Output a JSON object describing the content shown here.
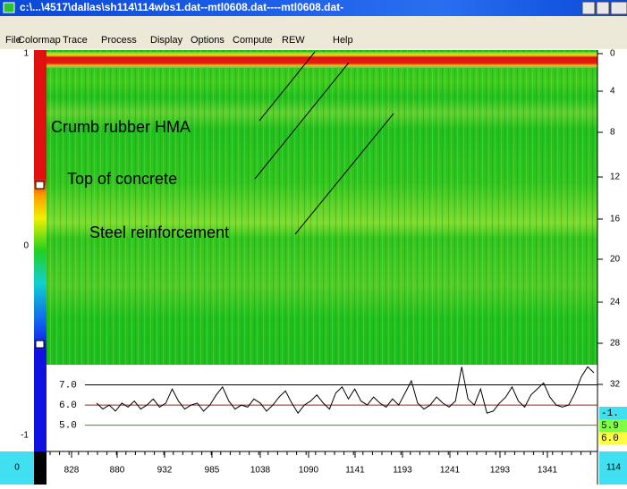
{
  "window": {
    "title": "c:\\...\\4517\\dallas\\sh114\\114wbs1.dat--mtl0608.dat----mtl0608.dat-"
  },
  "menu": [
    "File",
    "Colormap",
    "Trace",
    "Process",
    "Display",
    "Options",
    "Compute",
    "REW",
    "Help"
  ],
  "annotations": [
    "Crumb rubber HMA",
    "Top of concrete",
    "Steel reinforcement"
  ],
  "color_scale": {
    "labels": [
      "1",
      "0",
      "-1"
    ]
  },
  "depth_axis": {
    "labels": [
      "0",
      "4",
      "8",
      "12",
      "16",
      "20",
      "24",
      "28",
      "32"
    ]
  },
  "side_readouts": [
    "-1.",
    "5.9",
    "6.0"
  ],
  "trace": {
    "ylim": [
      3.7,
      8.0
    ],
    "lines": [
      {
        "value": 7,
        "label": "7.0",
        "color": "#000000"
      },
      {
        "value": 6,
        "label": "6.0",
        "color": "#a02020"
      },
      {
        "value": 5,
        "label": "5.0",
        "color": "#2a9a2a"
      }
    ],
    "values": [
      6.1,
      5.8,
      6.0,
      5.7,
      6.1,
      5.9,
      6.2,
      5.8,
      6.0,
      6.3,
      5.9,
      6.1,
      6.8,
      6.2,
      5.8,
      6.0,
      6.1,
      5.7,
      6.0,
      6.5,
      6.9,
      6.2,
      5.8,
      6.0,
      5.9,
      6.3,
      6.1,
      5.7,
      6.0,
      6.4,
      6.7,
      6.1,
      5.6,
      6.0,
      6.2,
      6.5,
      6.1,
      5.8,
      6.6,
      6.9,
      6.3,
      6.8,
      6.2,
      6.0,
      6.4,
      6.1,
      5.9,
      6.3,
      6.0,
      6.6,
      7.2,
      6.1,
      5.8,
      6.0,
      6.4,
      6.1,
      5.9,
      6.2,
      7.9,
      6.3,
      6.0,
      6.8,
      5.6,
      5.7,
      6.1,
      6.4,
      6.9,
      6.2,
      5.9,
      6.5,
      6.8,
      7.1,
      6.4,
      6.0,
      5.9,
      6.0,
      6.6,
      7.4,
      7.9,
      7.6
    ]
  },
  "trace_axis": {
    "labels": [
      "828",
      "880",
      "932",
      "985",
      "1038",
      "1090",
      "1141",
      "1193",
      "1241",
      "1293",
      "1341"
    ]
  },
  "corner_labels": [
    "0",
    "114"
  ]
}
